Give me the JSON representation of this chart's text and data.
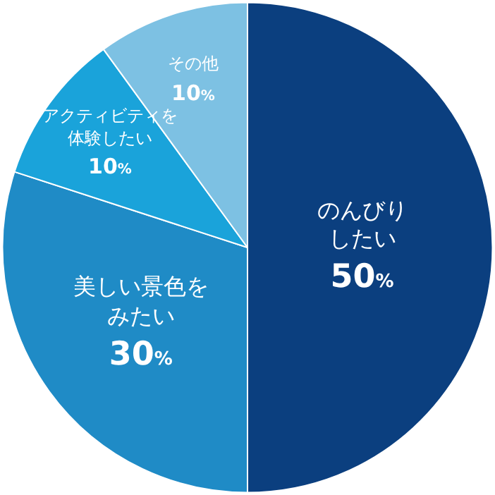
{
  "chart_data": {
    "type": "pie",
    "categories": [
      "のんびりしたい",
      "美しい景色をみたい",
      "アクティビティを体験したい",
      "その他"
    ],
    "values": [
      50,
      30,
      10,
      10
    ],
    "value_labels": [
      "50%",
      "30%",
      "10%",
      "10%"
    ],
    "colors": [
      "#0b3f7f",
      "#1f8bc6",
      "#1aa3da",
      "#7dc1e3"
    ],
    "legend": false
  }
}
